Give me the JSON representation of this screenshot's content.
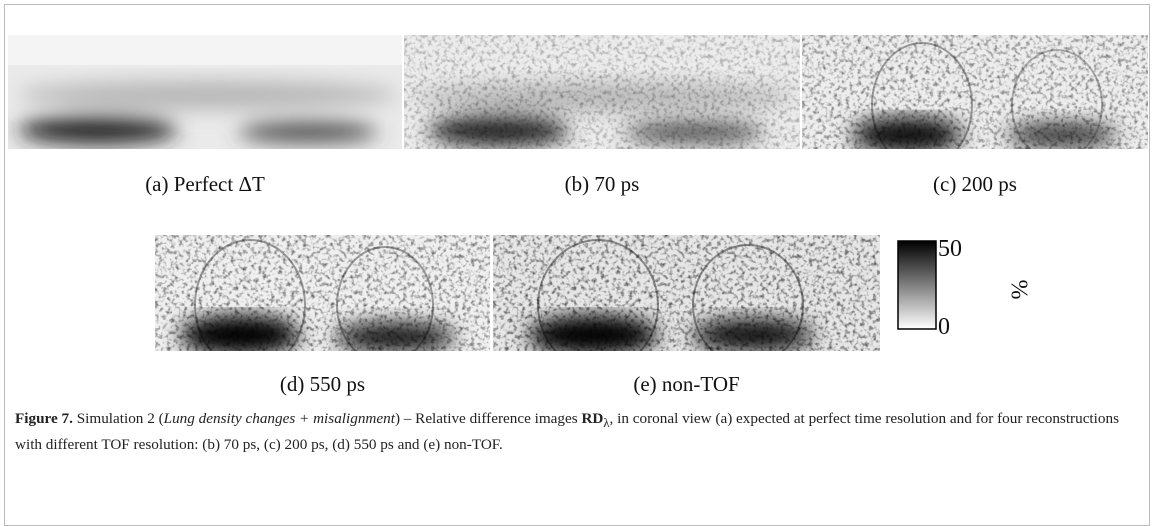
{
  "panels": [
    {
      "label": "(a) Perfect ΔT"
    },
    {
      "label": "(b) 70 ps"
    },
    {
      "label": "(c) 200 ps"
    },
    {
      "label": "(d) 550 ps"
    },
    {
      "label": "(e) non-TOF"
    }
  ],
  "colorbar": {
    "ticks": [
      50,
      0
    ],
    "unit": "%"
  },
  "caption": {
    "label": "Figure 7.",
    "parts": [
      " Simulation 2 (",
      "Lung density changes + misalignment",
      ") – Relative difference images ",
      "RD",
      "λ",
      ", in coronal view (a) expected at perfect time resolution and for four reconstructions with different TOF resolution: (b) 70 ps, (c) 200 ps, (d) 550 ps and (e) non-TOF."
    ]
  }
}
